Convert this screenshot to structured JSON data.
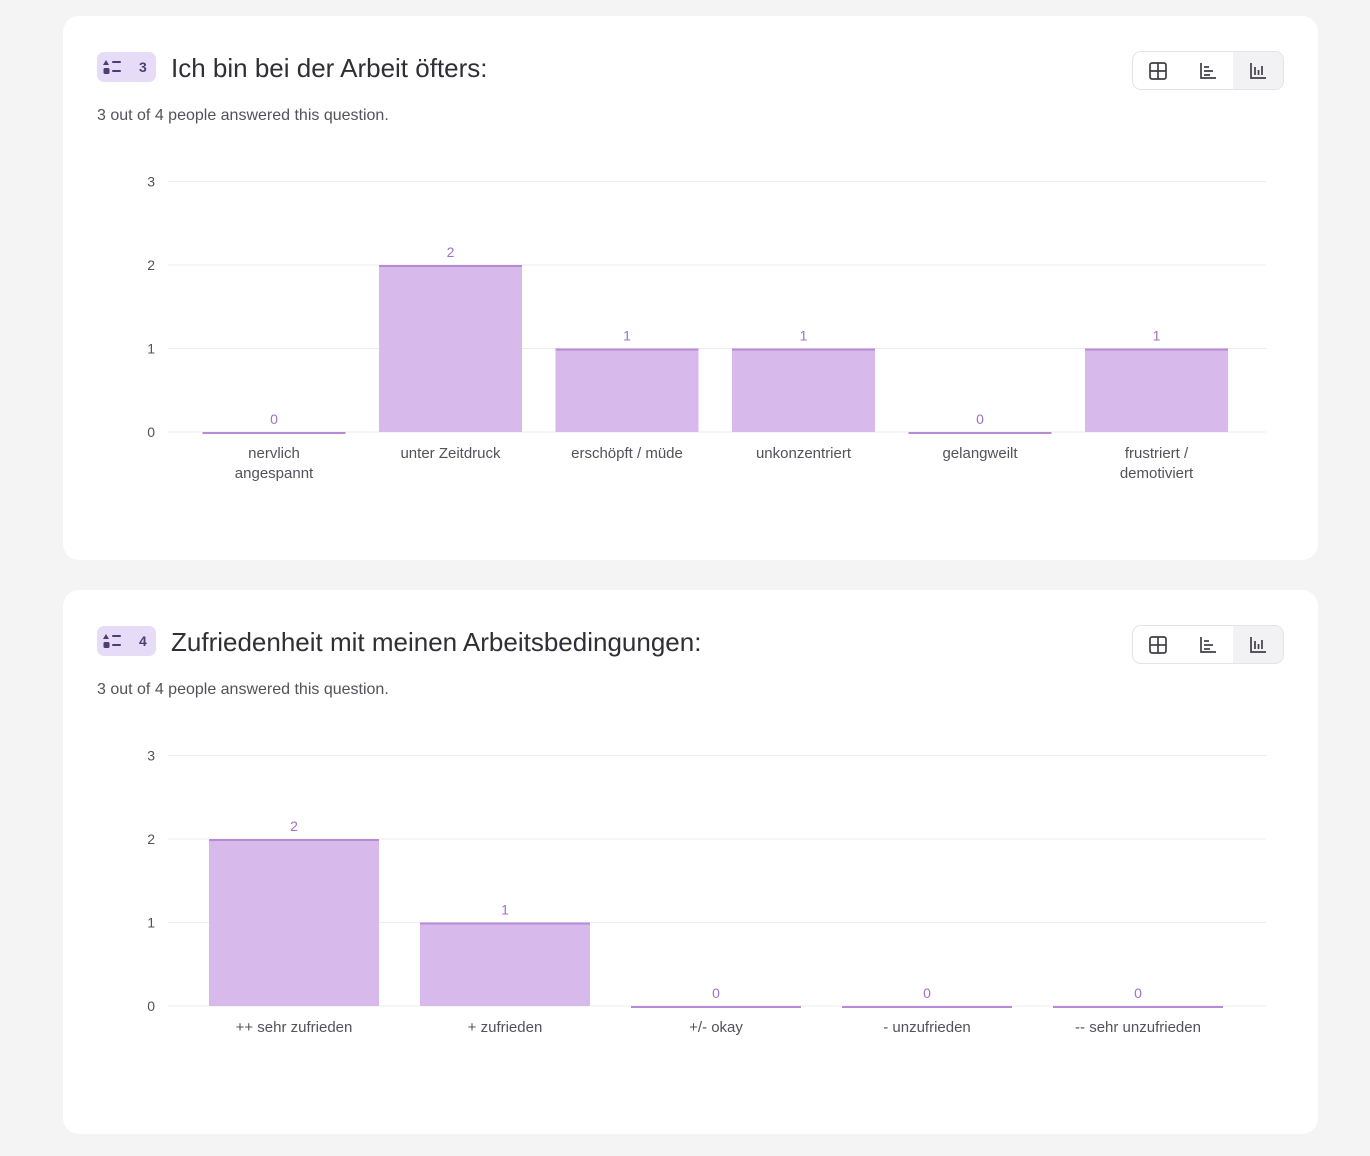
{
  "questions": [
    {
      "number": "3",
      "title": "Ich bin bei der Arbeit öfters:",
      "answered_text": "3 out of 4 people answered this question.",
      "view_buttons": [
        {
          "name": "table-view-button",
          "icon": "grid-icon"
        },
        {
          "name": "horizontal-bar-view-button",
          "icon": "horizontal-bar-chart-icon"
        },
        {
          "name": "vertical-bar-view-button",
          "icon": "vertical-bar-chart-icon",
          "active": true
        }
      ]
    },
    {
      "number": "4",
      "title": "Zufriedenheit mit meinen Arbeitsbedingungen:",
      "answered_text": "3 out of 4 people answered this question.",
      "view_buttons": [
        {
          "name": "table-view-button",
          "icon": "grid-icon"
        },
        {
          "name": "horizontal-bar-view-button",
          "icon": "horizontal-bar-chart-icon"
        },
        {
          "name": "vertical-bar-view-button",
          "icon": "vertical-bar-chart-icon",
          "active": true
        }
      ]
    }
  ],
  "colors": {
    "bar": "#d7b9ec",
    "bar_edge": "#b68bd6",
    "value_label": "#a071c8",
    "grid": "#ececef",
    "tick": "#52525b"
  },
  "chart_data": [
    {
      "type": "bar",
      "title": "Ich bin bei der Arbeit öfters:",
      "categories": [
        [
          "nervlich",
          "angespannt"
        ],
        [
          "unter Zeitdruck"
        ],
        [
          "erschöpft / müde"
        ],
        [
          "unkonzentriert"
        ],
        [
          "gelangweilt"
        ],
        [
          "frustriert /",
          "demotiviert"
        ]
      ],
      "values": [
        0,
        2,
        1,
        1,
        0,
        1
      ],
      "yticks": [
        0,
        1,
        2,
        3
      ],
      "ylim": [
        0,
        3
      ],
      "grid": true,
      "xlabel": "",
      "ylabel": ""
    },
    {
      "type": "bar",
      "title": "Zufriedenheit mit meinen Arbeitsbedingungen:",
      "categories": [
        [
          "++ sehr zufrieden"
        ],
        [
          "+ zufrieden"
        ],
        [
          "+/- okay"
        ],
        [
          "- unzufrieden"
        ],
        [
          "-- sehr unzufrieden"
        ]
      ],
      "values": [
        2,
        1,
        0,
        0,
        0
      ],
      "yticks": [
        0,
        1,
        2,
        3
      ],
      "ylim": [
        0,
        3
      ],
      "grid": true,
      "xlabel": "",
      "ylabel": ""
    }
  ]
}
